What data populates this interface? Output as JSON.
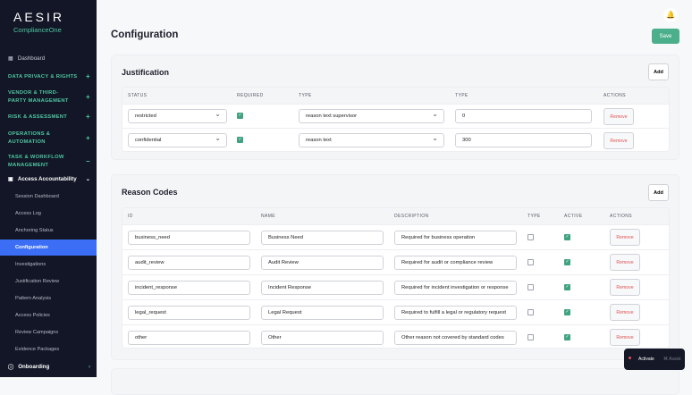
{
  "sidebar": {
    "logo": "AESIR",
    "logo_sub": "ComplianceOne",
    "dashboard": "Dashboard",
    "sections": [
      "DATA PRIVACY & RIGHTS",
      "VENDOR & THIRD-PARTY MANAGEMENT",
      "RISK & ASSESSMENT",
      "OPERATIONS & AUTOMATION",
      "TASK & WORKFLOW MANAGEMENT"
    ],
    "group": "Access Accountability",
    "subitems": [
      "Session Dashboard",
      "Access Log",
      "Anchoring Status",
      "Configuration",
      "Investigations",
      "Justification Review",
      "Pattern Analysis",
      "Access Policies",
      "Review Campaigns",
      "Evidence Packages"
    ],
    "active": "Configuration",
    "onboarding": "Onboarding"
  },
  "header": {
    "title": "Configuration",
    "save": "Save"
  },
  "justification": {
    "title": "Justification",
    "add": "Add",
    "columns": [
      "STATUS",
      "REQUIRED",
      "TYPE",
      "TYPE",
      "ACTIONS"
    ],
    "rows": [
      {
        "status": "restricted",
        "required": true,
        "type": "reason text supervisor",
        "value": "0",
        "action": "Remove"
      },
      {
        "status": "confidential",
        "required": true,
        "type": "reason text",
        "value": "300",
        "action": "Remove"
      }
    ]
  },
  "reason_codes": {
    "title": "Reason Codes",
    "add": "Add",
    "columns": [
      "ID",
      "NAME",
      "DESCRIPTION",
      "TYPE",
      "ACTIVE",
      "ACTIONS"
    ],
    "rows": [
      {
        "id": "business_need",
        "name": "Business Need",
        "description": "Required for business operation",
        "type": false,
        "active": true,
        "action": "Remove"
      },
      {
        "id": "audit_review",
        "name": "Audit Review",
        "description": "Required for audit or compliance review",
        "type": false,
        "active": true,
        "action": "Remove"
      },
      {
        "id": "incident_response",
        "name": "Incident Response",
        "description": "Required for incident investigation or response",
        "type": false,
        "active": true,
        "action": "Remove"
      },
      {
        "id": "legal_request",
        "name": "Legal Request",
        "description": "Required to fulfill a legal or regulatory request",
        "type": false,
        "active": true,
        "action": "Remove"
      },
      {
        "id": "other",
        "name": "Other",
        "description": "Other reason not covered by standard codes",
        "type": false,
        "active": true,
        "action": "Remove"
      }
    ]
  },
  "toast": {
    "label": "Activate",
    "hint": "⌘ Assist"
  },
  "colors": {
    "sidebar": "#121626",
    "accent": "#4fc6a0",
    "active": "#3b6ef5",
    "save": "#4caf8c",
    "remove": "#e05252"
  }
}
